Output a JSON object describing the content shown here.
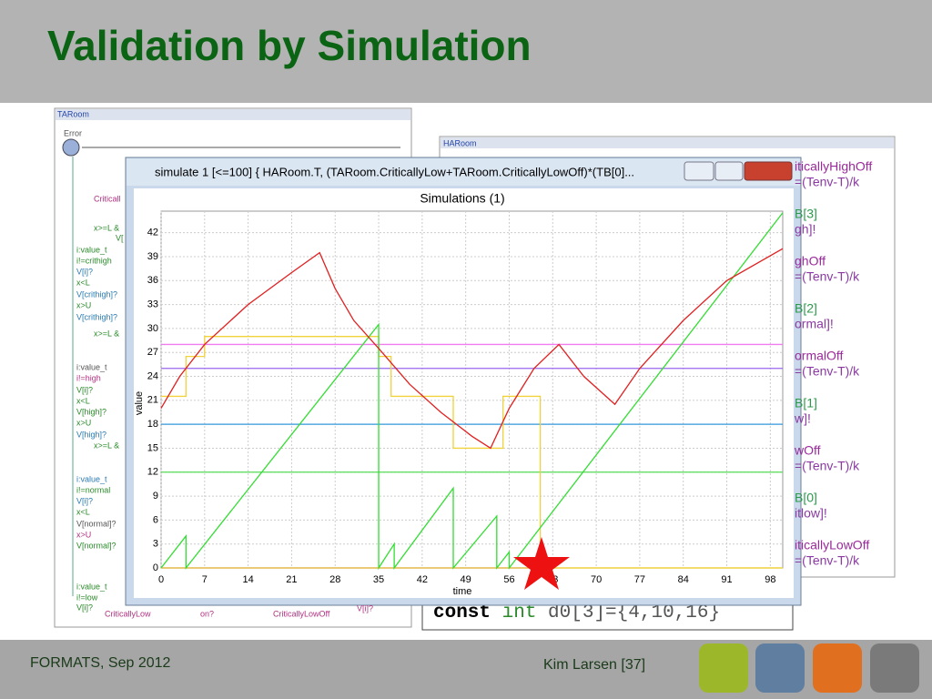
{
  "slide": {
    "title": "Validation by Simulation",
    "footer_left": "FORMATS, Sep 2012",
    "footer_right": "Kim Larsen [37]"
  },
  "background": {
    "left_panel": {
      "title": "TARoom",
      "labels": [
        "Error",
        "Criticall",
        "x>=L &",
        "V[",
        "i:value_t",
        "i!=crithigh",
        "V[i]?",
        "x<L",
        "V[crithigh]?",
        "x>U",
        "V[crithigh]?",
        "x>=L &",
        "i:value_t",
        "i!=high",
        "V[i]?",
        "x<L",
        "V[high]?",
        "x>U",
        "V[high]?",
        "x>=L &",
        "i:value_t",
        "i!=normal",
        "V[i]?",
        "x<L",
        "V[normal]?",
        "x>U",
        "V[normal]?",
        "i:value_t",
        "i!=low",
        "V[i]?",
        "CriticallyLow",
        "on?",
        "CriticallyLowOff",
        "V[i]?"
      ]
    },
    "right_panel": {
      "title": "HARoom",
      "labels": [
        "iticallyHighOff",
        "=(Tenv-T)/k",
        "B[3]",
        "gh]!",
        "ghOff",
        "=(Tenv-T)/k",
        "B[2]",
        "ormal]!",
        "ormalOff",
        "=(Tenv-T)/k",
        "B[1]",
        "w]!",
        "wOff",
        "=(Tenv-T)/k",
        "B[0]",
        "itlow]!",
        "iticallyLowOff",
        "=(Tenv-T)/k"
      ]
    },
    "code": [
      "const",
      "int",
      "d0[3]={4,10,16}"
    ]
  },
  "window": {
    "title": "simulate 1 [<=100] { HARoom.T,   (TARoom.CriticallyLow+TARoom.CriticallyLowOff)*(TB[0]..."
  },
  "chart_data": {
    "type": "line",
    "title": "Simulations (1)",
    "x_label": "time",
    "y_label": "value",
    "xlim": [
      0,
      100
    ],
    "ylim": [
      0,
      44.7
    ],
    "xticks": [
      0,
      7,
      14,
      21,
      28,
      35,
      42,
      49,
      56,
      63,
      70,
      77,
      84,
      91,
      98
    ],
    "yticks": [
      0,
      3,
      6,
      9,
      12,
      15,
      18,
      21,
      24,
      27,
      30,
      33,
      36,
      39,
      42
    ],
    "grid": true,
    "series": [
      {
        "color": "#f07cf0",
        "x": [
          0,
          100
        ],
        "values": [
          28,
          28
        ]
      },
      {
        "color": "#9966ee",
        "x": [
          0,
          100
        ],
        "values": [
          25,
          25
        ]
      },
      {
        "color": "#3399dd",
        "x": [
          0,
          100
        ],
        "values": [
          18,
          18
        ]
      },
      {
        "color": "#55dd55",
        "x": [
          0,
          100
        ],
        "values": [
          12,
          12
        ]
      },
      {
        "color": "#ddaa22",
        "x": [
          0,
          100
        ],
        "values": [
          0,
          0
        ]
      },
      {
        "color": "#f2d23a",
        "x": [
          0,
          4,
          4,
          7,
          7,
          35,
          35,
          37,
          37,
          47,
          47,
          55,
          55,
          61,
          61,
          100
        ],
        "values": [
          21.5,
          21.5,
          26.5,
          26.5,
          29,
          29,
          26.5,
          26.5,
          21.5,
          21.5,
          15,
          15,
          21.5,
          21.5,
          0,
          0
        ]
      },
      {
        "color": "#33dd33",
        "x": [
          0,
          4,
          4,
          35,
          35,
          37.5,
          37.5,
          47,
          47,
          54,
          54,
          56,
          56,
          100
        ],
        "values": [
          0,
          4,
          0,
          30.5,
          0,
          3,
          0,
          10,
          0,
          6.5,
          0,
          2,
          0,
          44.5
        ]
      },
      {
        "color": "#e02020",
        "x": [
          0,
          3,
          7,
          14,
          21,
          25.5,
          28,
          31,
          35,
          40,
          45,
          50,
          53,
          56,
          60,
          64,
          68,
          73,
          77,
          84,
          91,
          100
        ],
        "values": [
          20,
          24,
          28,
          33,
          37,
          39.5,
          35,
          31,
          27.5,
          23,
          19.5,
          16.5,
          15,
          20,
          25,
          28,
          24,
          20.5,
          25,
          31,
          36,
          40
        ]
      }
    ]
  }
}
